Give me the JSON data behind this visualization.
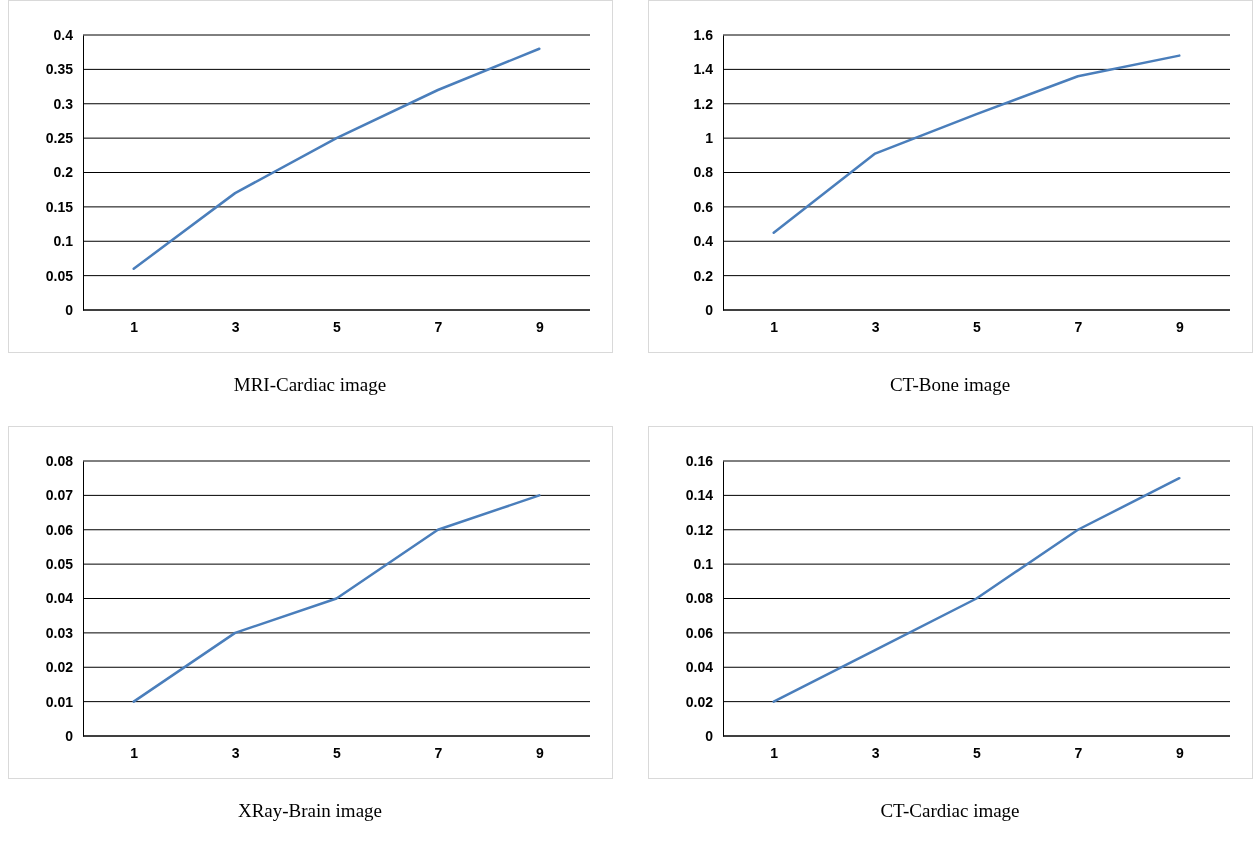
{
  "chart_data": [
    {
      "type": "line",
      "title": "MRI-Cardiac image",
      "categories": [
        "1",
        "3",
        "5",
        "7",
        "9"
      ],
      "series": [
        {
          "color": "#4a7ebb",
          "values": [
            0.06,
            0.17,
            0.25,
            0.32,
            0.38
          ]
        }
      ],
      "ylim": [
        0,
        0.4
      ],
      "yticks": [
        0,
        0.05,
        0.1,
        0.15,
        0.2,
        0.25,
        0.3,
        0.35,
        0.4
      ],
      "grid": "y"
    },
    {
      "type": "line",
      "title": "CT-Bone image",
      "categories": [
        "1",
        "3",
        "5",
        "7",
        "9"
      ],
      "series": [
        {
          "color": "#4a7ebb",
          "values": [
            0.45,
            0.91,
            1.14,
            1.36,
            1.48
          ]
        }
      ],
      "ylim": [
        0,
        1.6
      ],
      "yticks": [
        0,
        0.2,
        0.4,
        0.6,
        0.8,
        1,
        1.2,
        1.4,
        1.6
      ],
      "grid": "y"
    },
    {
      "type": "line",
      "title": "XRay-Brain image",
      "categories": [
        "1",
        "3",
        "5",
        "7",
        "9"
      ],
      "series": [
        {
          "color": "#4a7ebb",
          "values": [
            0.01,
            0.03,
            0.04,
            0.06,
            0.07
          ]
        }
      ],
      "ylim": [
        0,
        0.08
      ],
      "yticks": [
        0,
        0.01,
        0.02,
        0.03,
        0.04,
        0.05,
        0.06,
        0.07,
        0.08
      ],
      "grid": "y"
    },
    {
      "type": "line",
      "title": "CT-Cardiac image",
      "categories": [
        "1",
        "3",
        "5",
        "7",
        "9"
      ],
      "series": [
        {
          "color": "#4a7ebb",
          "values": [
            0.02,
            0.05,
            0.08,
            0.12,
            0.15
          ]
        }
      ],
      "ylim": [
        0,
        0.16
      ],
      "yticks": [
        0,
        0.02,
        0.04,
        0.06,
        0.08,
        0.1,
        0.12,
        0.14,
        0.16
      ],
      "grid": "y"
    }
  ]
}
